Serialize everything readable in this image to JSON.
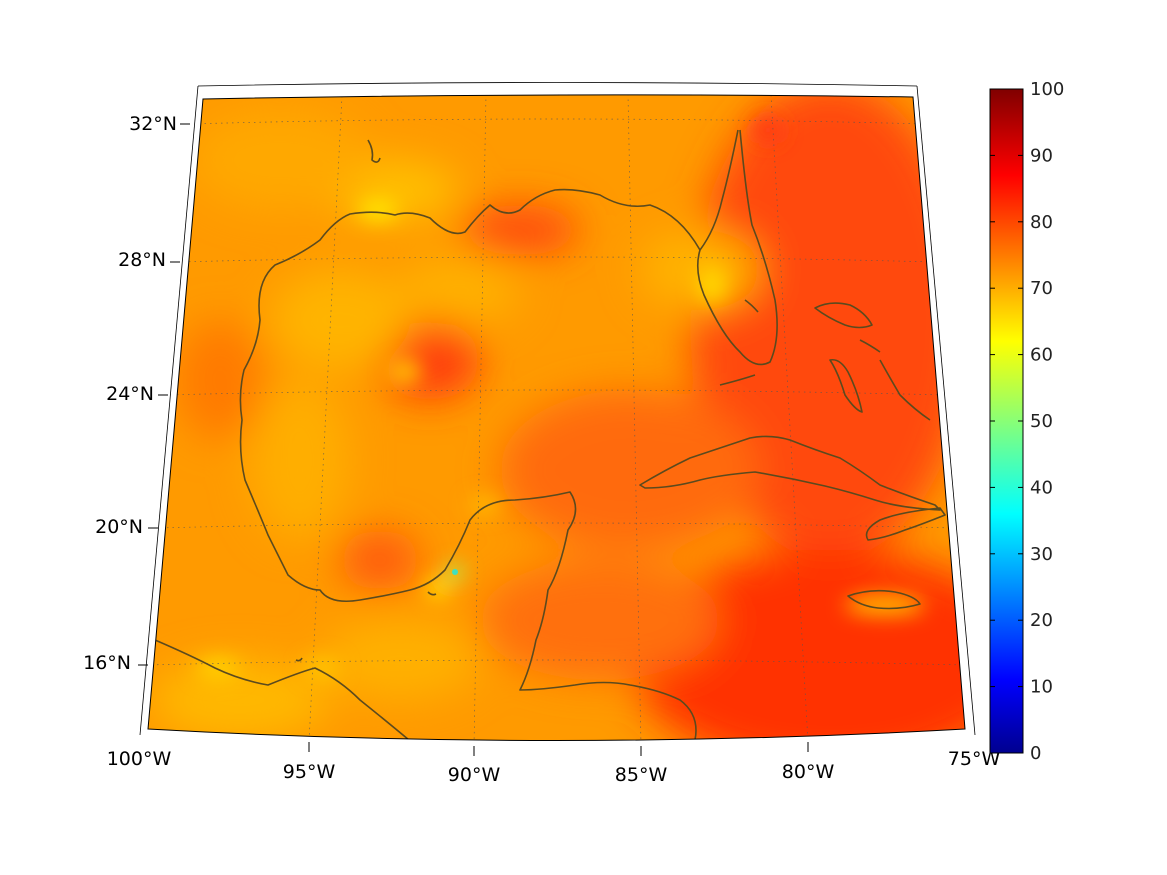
{
  "map": {
    "lat_labels": [
      "32°N",
      "28°N",
      "24°N",
      "20°N",
      "16°N"
    ],
    "lon_labels": [
      "100°W",
      "95°W",
      "90°W",
      "85°W",
      "80°W",
      "75°W"
    ]
  },
  "colorbar": {
    "ticks": [
      "0",
      "10",
      "20",
      "30",
      "40",
      "50",
      "60",
      "70",
      "80",
      "90",
      "100"
    ],
    "colormap": "jet",
    "min": 0,
    "max": 100
  },
  "colors": {
    "coastline": "#5b4a1e",
    "dominant_field": "#ff9a00",
    "warm_field": "#ff3b00"
  }
}
